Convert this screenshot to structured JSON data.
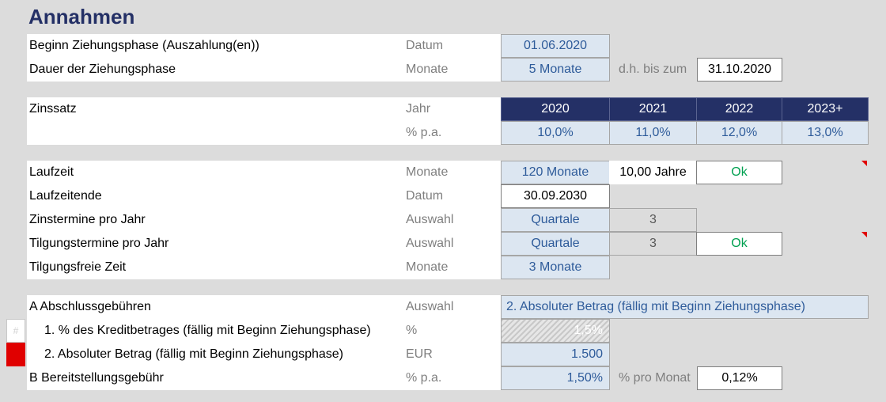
{
  "title": "Annahmen",
  "section1": {
    "row1": {
      "label": "Beginn Ziehungsphase (Auszahlung(en))",
      "unit": "Datum",
      "value": "01.06.2020"
    },
    "row2": {
      "label": "Dauer der Ziehungsphase",
      "unit": "Monate",
      "value": "5 Monate",
      "note": "d.h. bis zum",
      "end": "31.10.2020"
    }
  },
  "section2": {
    "label": "Zinssatz",
    "unit_year": "Jahr",
    "unit_pct": "% p.a.",
    "years": [
      "2020",
      "2021",
      "2022",
      "2023+"
    ],
    "rates": [
      "10,0%",
      "11,0%",
      "12,0%",
      "13,0%"
    ]
  },
  "section3": {
    "laufzeit": {
      "label": "Laufzeit",
      "unit": "Monate",
      "value": "120 Monate",
      "years": "10,00 Jahre",
      "check": "Ok"
    },
    "laufzeitende": {
      "label": "Laufzeitende",
      "unit": "Datum",
      "value": "30.09.2030"
    },
    "zinstermine": {
      "label": "Zinstermine pro Jahr",
      "unit": "Auswahl",
      "value": "Quartale",
      "count": "3"
    },
    "tilgungstermine": {
      "label": "Tilgungstermine pro Jahr",
      "unit": "Auswahl",
      "value": "Quartale",
      "count": "3",
      "check": "Ok"
    },
    "tilgungsfrei": {
      "label": "Tilgungsfreie Zeit",
      "unit": "Monate",
      "value": "3 Monate"
    }
  },
  "section4": {
    "a": {
      "label": "A  Abschlussgebühren",
      "unit": "Auswahl",
      "value": "2. Absoluter Betrag (fällig mit Beginn Ziehungsphase)"
    },
    "a1": {
      "label": "1. % des Kreditbetrages (fällig mit Beginn Ziehungsphase)",
      "unit": "%",
      "value": "1,5%",
      "marker": "#"
    },
    "a2": {
      "label": "2. Absoluter Betrag (fällig mit Beginn Ziehungsphase)",
      "unit": "EUR",
      "value": "1.500"
    },
    "b": {
      "label": "B  Bereitstellungsgebühr",
      "unit": "% p.a.",
      "value": "1,50%",
      "note": "% pro Monat",
      "monthly": "0,12%"
    }
  },
  "colors": {
    "header": "#243066",
    "input": "#dce6f1",
    "input_text": "#2e5b9a",
    "ok": "#00a050",
    "marker_red": "#e00000"
  }
}
